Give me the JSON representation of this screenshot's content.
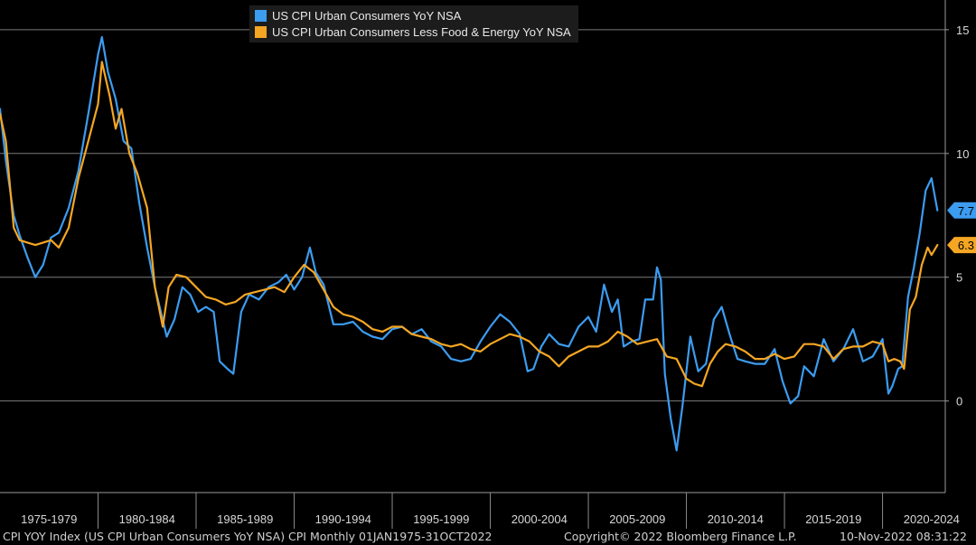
{
  "chart_data": {
    "type": "line",
    "title": "",
    "legend": {
      "position": "top-left",
      "entries": [
        {
          "label": "US CPI Urban Consumers YoY NSA",
          "color": "#3c9cf0"
        },
        {
          "label": "US CPI Urban Consumers Less Food & Energy YoY NSA",
          "color": "#f5a623"
        }
      ]
    },
    "y_axis": {
      "side": "right",
      "ylim": [
        -3.7,
        16.2
      ],
      "ticks": [
        0,
        5,
        10,
        15
      ]
    },
    "x_axis": {
      "xlim": [
        1975.0,
        2023.2
      ],
      "tick_labels": [
        "1975-1979",
        "1980-1984",
        "1985-1989",
        "1990-1994",
        "1995-1999",
        "2000-2004",
        "2005-2009",
        "2010-2014",
        "2015-2019",
        "2020-2024"
      ],
      "tick_centers": [
        1977.5,
        1982.5,
        1987.5,
        1992.5,
        1997.5,
        2002.5,
        2007.5,
        2012.5,
        2017.5,
        2022.5
      ],
      "separators": [
        1980,
        1985,
        1990,
        1995,
        2000,
        2005,
        2010,
        2015,
        2020
      ]
    },
    "grid": true,
    "series": [
      {
        "name": "US CPI Urban Consumers YoY NSA",
        "color": "#3c9cf0",
        "last_value_label": "7.7",
        "x": [
          1975.0,
          1975.3,
          1975.7,
          1976.0,
          1976.4,
          1976.8,
          1977.2,
          1977.6,
          1978.0,
          1978.5,
          1979.0,
          1979.5,
          1980.0,
          1980.2,
          1980.5,
          1980.9,
          1981.3,
          1981.7,
          1982.1,
          1982.5,
          1982.9,
          1983.2,
          1983.5,
          1983.9,
          1984.3,
          1984.7,
          1985.1,
          1985.5,
          1985.9,
          1986.2,
          1986.6,
          1986.9,
          1987.3,
          1987.7,
          1988.2,
          1988.7,
          1989.2,
          1989.6,
          1990.0,
          1990.4,
          1990.8,
          1991.1,
          1991.5,
          1992.0,
          1992.5,
          1993.0,
          1993.5,
          1994.0,
          1994.5,
          1995.0,
          1995.5,
          1996.0,
          1996.5,
          1997.0,
          1997.5,
          1998.0,
          1998.5,
          1999.0,
          1999.5,
          2000.0,
          2000.5,
          2001.0,
          2001.5,
          2001.9,
          2002.2,
          2002.6,
          2003.0,
          2003.5,
          2004.0,
          2004.5,
          2005.0,
          2005.4,
          2005.8,
          2006.2,
          2006.5,
          2006.8,
          2007.2,
          2007.6,
          2007.9,
          2008.3,
          2008.5,
          2008.7,
          2008.9,
          2009.2,
          2009.5,
          2009.8,
          2010.2,
          2010.6,
          2011.0,
          2011.4,
          2011.8,
          2012.2,
          2012.6,
          2013.0,
          2013.5,
          2014.0,
          2014.5,
          2014.9,
          2015.3,
          2015.7,
          2016.0,
          2016.5,
          2017.0,
          2017.5,
          2018.0,
          2018.5,
          2019.0,
          2019.5,
          2020.0,
          2020.3,
          2020.5,
          2020.8,
          2021.0,
          2021.3,
          2021.6,
          2021.9,
          2022.2,
          2022.5,
          2022.8
        ],
        "y": [
          11.8,
          9.7,
          7.5,
          6.7,
          5.8,
          5.0,
          5.5,
          6.6,
          6.8,
          7.8,
          9.3,
          11.6,
          14.0,
          14.7,
          13.3,
          12.2,
          10.5,
          10.2,
          8.0,
          6.2,
          4.6,
          3.6,
          2.6,
          3.3,
          4.6,
          4.3,
          3.6,
          3.8,
          3.6,
          1.6,
          1.3,
          1.1,
          3.6,
          4.3,
          4.1,
          4.6,
          4.8,
          5.1,
          4.5,
          5.0,
          6.2,
          5.2,
          4.7,
          3.1,
          3.1,
          3.2,
          2.8,
          2.6,
          2.5,
          2.9,
          3.0,
          2.7,
          2.9,
          2.4,
          2.2,
          1.7,
          1.6,
          1.7,
          2.4,
          3.0,
          3.5,
          3.2,
          2.7,
          1.2,
          1.3,
          2.2,
          2.7,
          2.3,
          2.2,
          3.0,
          3.4,
          2.8,
          4.7,
          3.6,
          4.1,
          2.2,
          2.4,
          2.5,
          4.1,
          4.1,
          5.4,
          4.9,
          1.1,
          -0.7,
          -2.0,
          -0.2,
          2.6,
          1.2,
          1.5,
          3.3,
          3.8,
          2.7,
          1.7,
          1.6,
          1.5,
          1.5,
          2.1,
          0.8,
          -0.1,
          0.2,
          1.4,
          1.0,
          2.5,
          1.6,
          2.1,
          2.9,
          1.6,
          1.8,
          2.5,
          0.3,
          0.6,
          1.3,
          1.4,
          4.2,
          5.4,
          6.8,
          8.5,
          9.0,
          7.7
        ]
      },
      {
        "name": "US CPI Urban Consumers Less Food & Energy YoY NSA",
        "color": "#f5a623",
        "last_value_label": "6.3",
        "x": [
          1975.0,
          1975.3,
          1975.7,
          1976.0,
          1976.4,
          1976.8,
          1977.2,
          1977.6,
          1978.0,
          1978.5,
          1979.0,
          1979.5,
          1980.0,
          1980.2,
          1980.6,
          1980.9,
          1981.2,
          1981.6,
          1982.0,
          1982.5,
          1982.9,
          1983.3,
          1983.6,
          1984.0,
          1984.5,
          1985.0,
          1985.5,
          1986.0,
          1986.5,
          1987.0,
          1987.5,
          1988.0,
          1988.5,
          1989.0,
          1989.5,
          1990.0,
          1990.5,
          1991.0,
          1991.5,
          1992.0,
          1992.5,
          1993.0,
          1993.5,
          1994.0,
          1994.5,
          1995.0,
          1995.5,
          1996.0,
          1996.5,
          1997.0,
          1997.5,
          1998.0,
          1998.5,
          1999.0,
          1999.5,
          2000.0,
          2000.5,
          2001.0,
          2001.5,
          2002.0,
          2002.5,
          2003.0,
          2003.5,
          2004.0,
          2004.5,
          2005.0,
          2005.5,
          2006.0,
          2006.5,
          2007.0,
          2007.5,
          2008.0,
          2008.5,
          2009.0,
          2009.5,
          2010.0,
          2010.4,
          2010.8,
          2011.2,
          2011.6,
          2012.0,
          2012.5,
          2013.0,
          2013.5,
          2014.0,
          2014.5,
          2015.0,
          2015.5,
          2016.0,
          2016.5,
          2017.0,
          2017.5,
          2018.0,
          2018.5,
          2019.0,
          2019.5,
          2020.0,
          2020.3,
          2020.6,
          2020.9,
          2021.1,
          2021.4,
          2021.7,
          2022.0,
          2022.3,
          2022.5,
          2022.8
        ],
        "y": [
          11.6,
          10.5,
          7.0,
          6.5,
          6.4,
          6.3,
          6.4,
          6.5,
          6.2,
          7.0,
          9.0,
          10.5,
          12.0,
          13.7,
          12.3,
          11.0,
          11.8,
          10.0,
          9.2,
          7.8,
          4.6,
          3.0,
          4.6,
          5.1,
          5.0,
          4.6,
          4.2,
          4.1,
          3.9,
          4.0,
          4.3,
          4.4,
          4.5,
          4.6,
          4.4,
          5.0,
          5.5,
          5.2,
          4.5,
          3.8,
          3.5,
          3.4,
          3.2,
          2.9,
          2.8,
          3.0,
          3.0,
          2.7,
          2.6,
          2.5,
          2.3,
          2.2,
          2.3,
          2.1,
          2.0,
          2.3,
          2.5,
          2.7,
          2.6,
          2.4,
          2.0,
          1.8,
          1.4,
          1.8,
          2.0,
          2.2,
          2.2,
          2.4,
          2.8,
          2.6,
          2.3,
          2.4,
          2.5,
          1.8,
          1.7,
          0.9,
          0.7,
          0.6,
          1.5,
          2.0,
          2.3,
          2.2,
          2.0,
          1.7,
          1.7,
          1.9,
          1.7,
          1.8,
          2.3,
          2.3,
          2.2,
          1.7,
          2.1,
          2.2,
          2.2,
          2.4,
          2.3,
          1.6,
          1.7,
          1.6,
          1.3,
          3.7,
          4.2,
          5.5,
          6.2,
          5.9,
          6.3
        ]
      }
    ]
  },
  "footer": {
    "left": "CPI YOY Index (US CPI Urban Consumers YoY NSA) CPI  Monthly 01JAN1975-31OCT2022",
    "middle": "Copyright© 2022 Bloomberg Finance L.P.",
    "right": "10-Nov-2022 08:31:22"
  }
}
